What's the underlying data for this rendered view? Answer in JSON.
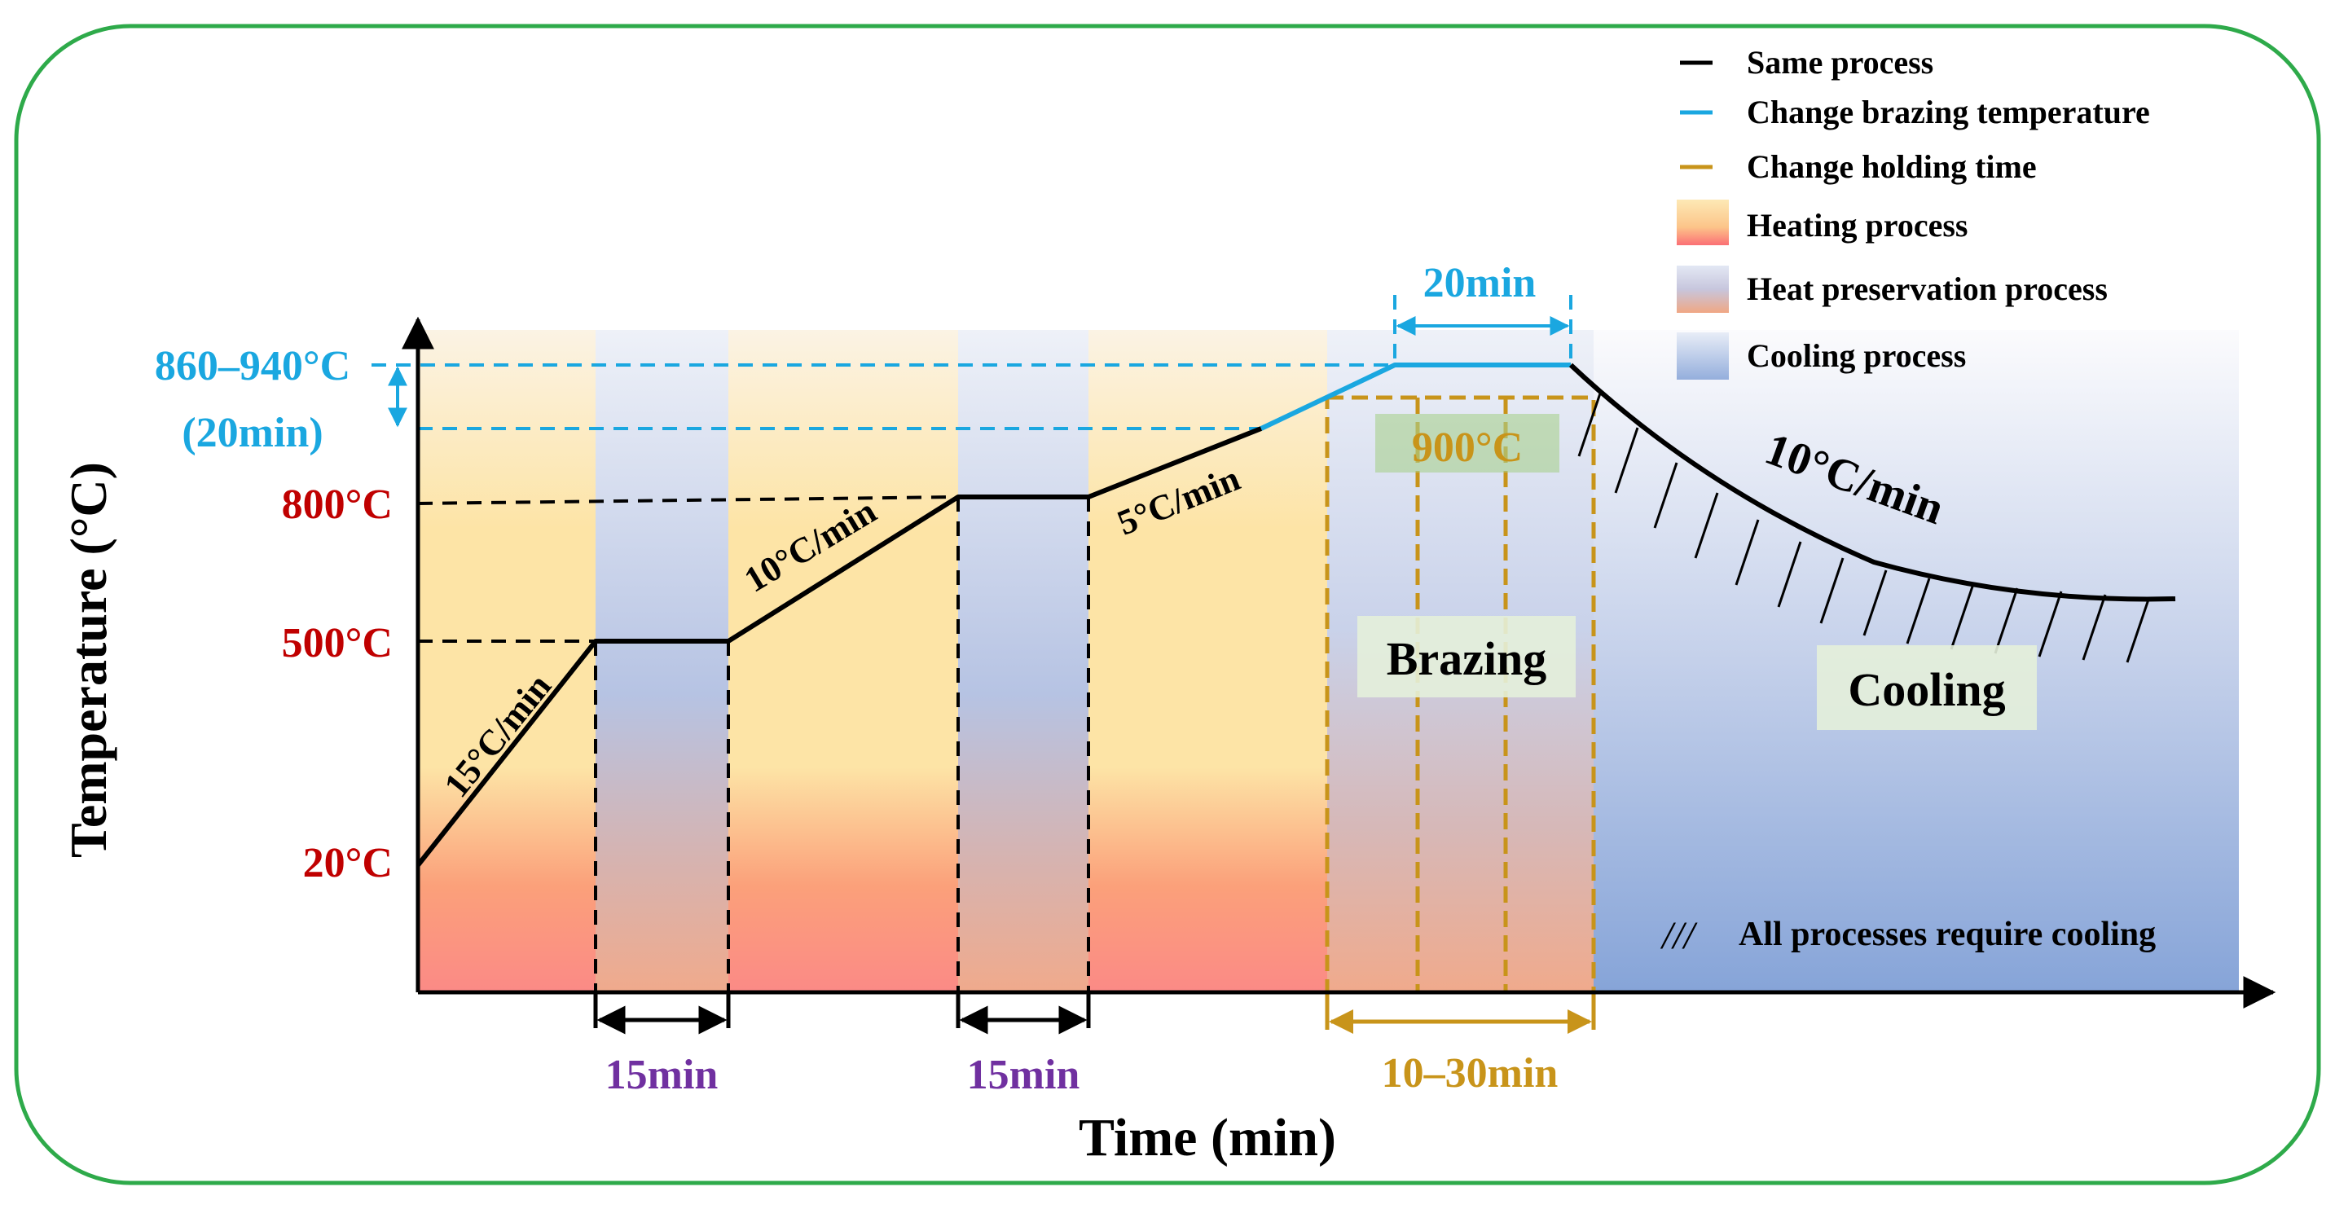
{
  "axes": {
    "y_label": "Temperature (°C)",
    "x_label": "Time (min)",
    "y_ticks": [
      {
        "label": "20°C",
        "color": "#c00000"
      },
      {
        "label": "500°C",
        "color": "#c00000"
      },
      {
        "label": "800°C",
        "color": "#c00000"
      }
    ],
    "brazing_temp_range": {
      "line1": "860–940°C",
      "line2": "(20min)",
      "color": "#1aa7e0"
    }
  },
  "rates": {
    "heat_1": "15°C/min",
    "heat_2": "10°C/min",
    "heat_3": "5°C/min",
    "cool": "10°C/min"
  },
  "durations": {
    "hold_1": "15min",
    "hold_2": "15min",
    "brazing_hold": "20min",
    "holding_range": "10–30min",
    "hold_color": "#7030a0"
  },
  "annotations": {
    "brazing_temp": "900°C",
    "brazing": "Brazing",
    "cooling": "Cooling",
    "all_cooling": "All processes require cooling",
    "hatch_symbol": "///"
  },
  "legend": [
    {
      "label": "Same process",
      "type": "line",
      "color": "#000000"
    },
    {
      "label": "Change brazing temperature",
      "type": "line",
      "color": "#1aa7e0"
    },
    {
      "label": "Change holding time",
      "type": "line",
      "color": "#b8860b"
    },
    {
      "label": "Heating process",
      "type": "swatch",
      "swatch": "heat"
    },
    {
      "label": "Heat preservation process",
      "type": "swatch",
      "swatch": "preserve"
    },
    {
      "label": "Cooling process",
      "type": "swatch",
      "swatch": "cool"
    }
  ],
  "colors": {
    "frame": "#2eaa4a",
    "brazing_blue": "#1aa7e0",
    "holding_gold": "#c8941a",
    "tick_red": "#c00000",
    "purple": "#7030a0",
    "label_box": "#e4efda",
    "label_box_900": "#a9d18e"
  }
}
